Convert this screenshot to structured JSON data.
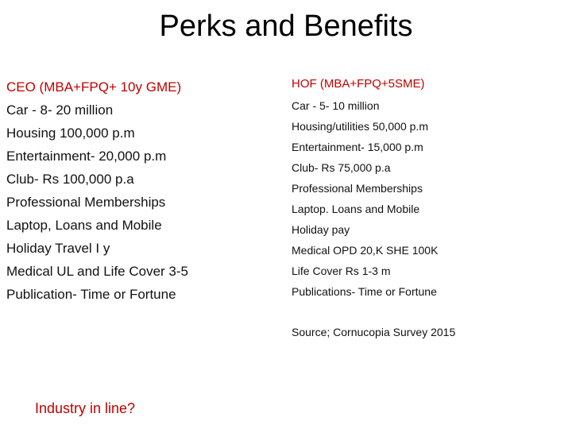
{
  "slide": {
    "title": "Perks and Benefits",
    "left_column": {
      "heading": "CEO (MBA+FPQ+ 10y GME)",
      "items": [
        "Car - 8- 20 million",
        "Housing 100,000 p.m",
        "Entertainment- 20,000 p.m",
        "Club- Rs 100,000 p.a",
        "Professional Memberships",
        "Laptop, Loans and Mobile",
        "Holiday Travel I y",
        "Medical  UL and Life Cover 3-5",
        "Publication- Time or Fortune"
      ]
    },
    "right_column": {
      "heading": "HOF (MBA+FPQ+5SME)",
      "items": [
        "Car - 5- 10 million",
        "Housing/utilities 50,000 p.m",
        "Entertainment- 15,000 p.m",
        "Club- Rs 75,000 p.a",
        "Professional Memberships",
        "Laptop. Loans and Mobile",
        "Holiday pay",
        "Medical OPD 20,K SHE 100K",
        "Life Cover Rs 1-3 m",
        "Publications- Time or Fortune"
      ]
    },
    "source": "Source; Cornucopia Survey 2015",
    "question": "Industry in line?",
    "colors": {
      "heading": "#c00000",
      "text": "#111111",
      "background": "#ffffff"
    }
  }
}
